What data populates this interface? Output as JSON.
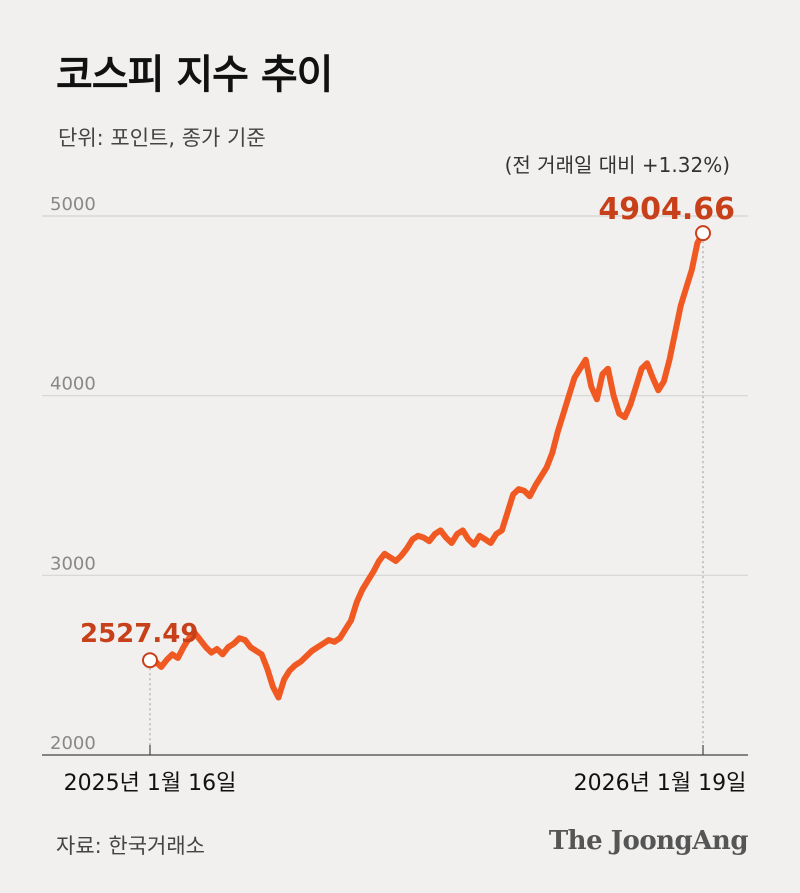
{
  "header": {
    "title": "코스피 지수 추이",
    "unit_note": "단위: 포인트, 종가 기준"
  },
  "footer": {
    "source": "자료: 한국거래소",
    "brand": "The JoongAng"
  },
  "colors": {
    "line": "#f05a22",
    "label": "#c8401a",
    "grid": "#d6d4d2",
    "background": "#f1f0ef"
  },
  "chart_data": {
    "type": "line",
    "title": "코스피 지수 추이",
    "ylabel": "",
    "xlabel": "",
    "ylim": [
      2000,
      5000
    ],
    "yticks": [
      "2000",
      "3000",
      "4000",
      "5000"
    ],
    "xticks": [
      "2025년 1월 16일",
      "2026년 1월 19일"
    ],
    "grid": "horizontal",
    "annotations": {
      "start_value": "2527.49",
      "end_value": "4904.66",
      "end_change": "(전 거래일 대비 +1.32%)"
    },
    "series": [
      {
        "name": "",
        "values": [
          2527.49,
          2520,
          2490,
          2530,
          2560,
          2540,
          2600,
          2650,
          2680,
          2640,
          2600,
          2570,
          2590,
          2560,
          2600,
          2620,
          2650,
          2640,
          2600,
          2580,
          2560,
          2480,
          2380,
          2320,
          2420,
          2470,
          2500,
          2520,
          2550,
          2580,
          2600,
          2620,
          2640,
          2630,
          2650,
          2700,
          2750,
          2850,
          2920,
          2970,
          3020,
          3080,
          3120,
          3100,
          3080,
          3110,
          3150,
          3200,
          3220,
          3210,
          3190,
          3230,
          3250,
          3210,
          3180,
          3230,
          3250,
          3200,
          3170,
          3220,
          3200,
          3180,
          3230,
          3250,
          3350,
          3450,
          3480,
          3470,
          3440,
          3500,
          3550,
          3600,
          3680,
          3800,
          3900,
          4000,
          4100,
          4150,
          4200,
          4050,
          3980,
          4120,
          4150,
          4000,
          3900,
          3880,
          3950,
          4050,
          4150,
          4180,
          4100,
          4030,
          4080,
          4200,
          4350,
          4500,
          4600,
          4700,
          4850,
          4904.66
        ]
      }
    ]
  }
}
